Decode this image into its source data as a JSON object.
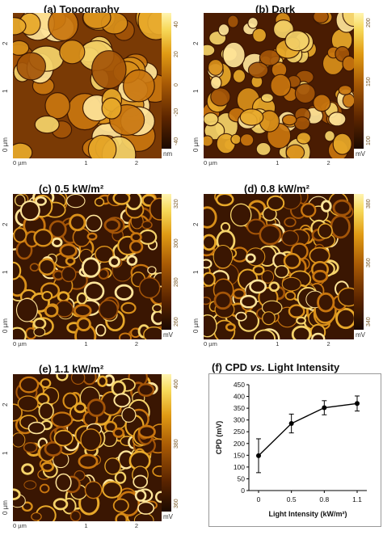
{
  "panels": [
    {
      "title": "(a) Topography",
      "unit": "nm",
      "ticks": [
        "40",
        "20",
        "0",
        "-20",
        "-40"
      ],
      "seed": 11,
      "style": "topo"
    },
    {
      "title": "(b) Dark",
      "unit": "mV",
      "ticks": [
        "200",
        "150",
        "100"
      ],
      "seed": 23,
      "style": "grain"
    },
    {
      "title": "(c) 0.5 kW/m²",
      "unit": "mV",
      "ticks": [
        "320",
        "300",
        "280",
        "260"
      ],
      "seed": 37,
      "style": "net"
    },
    {
      "title": "(d) 0.8 kW/m²",
      "unit": "mV",
      "ticks": [
        "380",
        "360",
        "340"
      ],
      "seed": 41,
      "style": "net"
    },
    {
      "title": "(e) 1.1 kW/m²",
      "unit": "mV",
      "ticks": [
        "400",
        "380",
        "360"
      ],
      "seed": 53,
      "style": "net"
    }
  ],
  "map_axes": {
    "y_labels": [
      "0 µm",
      "1",
      "2"
    ],
    "x_labels": [
      "0 µm",
      "1",
      "2"
    ]
  },
  "chart_data": {
    "type": "line",
    "title": "(f) CPD vs. Light Intensity",
    "title_parts": [
      "(f) CPD ",
      "vs.",
      " Light Intensity"
    ],
    "xlabel": "Light Intensity (kW/m²)",
    "ylabel": "CPD (mV)",
    "categories": [
      "0",
      "0.5",
      "0.8",
      "1.1"
    ],
    "values": [
      148,
      285,
      352,
      370
    ],
    "errors": [
      72,
      40,
      30,
      32
    ],
    "ylim": [
      0,
      450
    ],
    "yticks": [
      0,
      50,
      100,
      150,
      200,
      250,
      300,
      350,
      400,
      450
    ],
    "marker": "circle",
    "color": "#000000"
  }
}
